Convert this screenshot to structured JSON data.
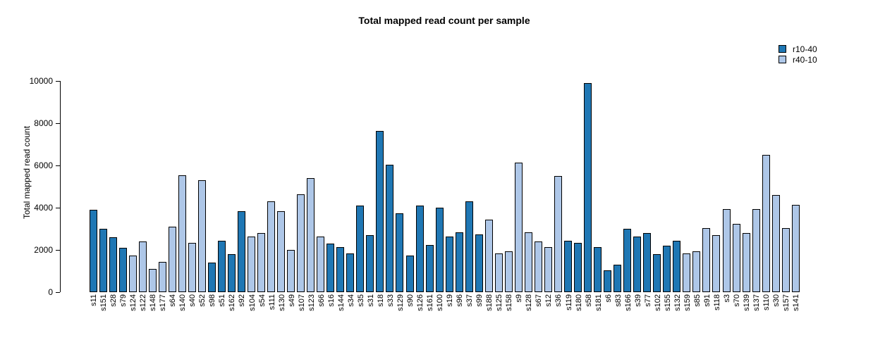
{
  "chart_data": {
    "type": "bar",
    "title": "Total mapped read count per sample",
    "xlabel": "",
    "ylabel": "Total mapped read count",
    "ylim": [
      0,
      10000
    ],
    "yticks": [
      0,
      2000,
      4000,
      6000,
      8000,
      10000
    ],
    "grid": false,
    "legend_position": "top-right",
    "legend": [
      {
        "name": "r10-40",
        "color": "#1f77b4"
      },
      {
        "name": "r40-10",
        "color": "#aec7e8"
      }
    ],
    "samples": [
      {
        "label": "s11",
        "value": 3900,
        "series": "r10-40"
      },
      {
        "label": "s151",
        "value": 3000,
        "series": "r10-40"
      },
      {
        "label": "s28",
        "value": 2600,
        "series": "r10-40"
      },
      {
        "label": "s79",
        "value": 2100,
        "series": "r10-40"
      },
      {
        "label": "s124",
        "value": 1750,
        "series": "r40-10"
      },
      {
        "label": "s122",
        "value": 2400,
        "series": "r40-10"
      },
      {
        "label": "s148",
        "value": 1100,
        "series": "r40-10"
      },
      {
        "label": "s177",
        "value": 1450,
        "series": "r40-10"
      },
      {
        "label": "s64",
        "value": 3100,
        "series": "r40-10"
      },
      {
        "label": "s140",
        "value": 5550,
        "series": "r40-10"
      },
      {
        "label": "s40",
        "value": 2350,
        "series": "r40-10"
      },
      {
        "label": "s52",
        "value": 5300,
        "series": "r40-10"
      },
      {
        "label": "s98",
        "value": 1400,
        "series": "r10-40"
      },
      {
        "label": "s51",
        "value": 2450,
        "series": "r10-40"
      },
      {
        "label": "s162",
        "value": 1800,
        "series": "r10-40"
      },
      {
        "label": "s92",
        "value": 3850,
        "series": "r10-40"
      },
      {
        "label": "s104",
        "value": 2650,
        "series": "r40-10"
      },
      {
        "label": "s54",
        "value": 2800,
        "series": "r40-10"
      },
      {
        "label": "s111",
        "value": 4300,
        "series": "r40-10"
      },
      {
        "label": "s130",
        "value": 3850,
        "series": "r40-10"
      },
      {
        "label": "s49",
        "value": 2000,
        "series": "r40-10"
      },
      {
        "label": "s107",
        "value": 4650,
        "series": "r40-10"
      },
      {
        "label": "s123",
        "value": 5400,
        "series": "r40-10"
      },
      {
        "label": "s66",
        "value": 2650,
        "series": "r40-10"
      },
      {
        "label": "s16",
        "value": 2300,
        "series": "r10-40"
      },
      {
        "label": "s144",
        "value": 2150,
        "series": "r10-40"
      },
      {
        "label": "s34",
        "value": 1850,
        "series": "r10-40"
      },
      {
        "label": "s35",
        "value": 4100,
        "series": "r10-40"
      },
      {
        "label": "s31",
        "value": 2700,
        "series": "r10-40"
      },
      {
        "label": "s18",
        "value": 7650,
        "series": "r10-40"
      },
      {
        "label": "s33",
        "value": 6050,
        "series": "r10-40"
      },
      {
        "label": "s129",
        "value": 3750,
        "series": "r10-40"
      },
      {
        "label": "s90",
        "value": 1750,
        "series": "r10-40"
      },
      {
        "label": "s126",
        "value": 4100,
        "series": "r10-40"
      },
      {
        "label": "s161",
        "value": 2250,
        "series": "r10-40"
      },
      {
        "label": "s100",
        "value": 4000,
        "series": "r10-40"
      },
      {
        "label": "s19",
        "value": 2650,
        "series": "r10-40"
      },
      {
        "label": "s96",
        "value": 2850,
        "series": "r10-40"
      },
      {
        "label": "s37",
        "value": 4300,
        "series": "r10-40"
      },
      {
        "label": "s99",
        "value": 2750,
        "series": "r10-40"
      },
      {
        "label": "s188",
        "value": 3450,
        "series": "r40-10"
      },
      {
        "label": "s125",
        "value": 1850,
        "series": "r40-10"
      },
      {
        "label": "s158",
        "value": 1950,
        "series": "r40-10"
      },
      {
        "label": "s9",
        "value": 6150,
        "series": "r40-10"
      },
      {
        "label": "s128",
        "value": 2850,
        "series": "r40-10"
      },
      {
        "label": "s67",
        "value": 2400,
        "series": "r40-10"
      },
      {
        "label": "s12",
        "value": 2150,
        "series": "r40-10"
      },
      {
        "label": "s36",
        "value": 5500,
        "series": "r40-10"
      },
      {
        "label": "s119",
        "value": 2450,
        "series": "r10-40"
      },
      {
        "label": "s180",
        "value": 2350,
        "series": "r10-40"
      },
      {
        "label": "s58",
        "value": 9900,
        "series": "r10-40"
      },
      {
        "label": "s181",
        "value": 2150,
        "series": "r10-40"
      },
      {
        "label": "s6",
        "value": 1050,
        "series": "r10-40"
      },
      {
        "label": "s83",
        "value": 1300,
        "series": "r10-40"
      },
      {
        "label": "s166",
        "value": 3000,
        "series": "r10-40"
      },
      {
        "label": "s39",
        "value": 2650,
        "series": "r10-40"
      },
      {
        "label": "s77",
        "value": 2800,
        "series": "r10-40"
      },
      {
        "label": "s102",
        "value": 1800,
        "series": "r10-40"
      },
      {
        "label": "s155",
        "value": 2200,
        "series": "r10-40"
      },
      {
        "label": "s132",
        "value": 2450,
        "series": "r10-40"
      },
      {
        "label": "s159",
        "value": 1850,
        "series": "r40-10"
      },
      {
        "label": "s85",
        "value": 1950,
        "series": "r40-10"
      },
      {
        "label": "s91",
        "value": 3050,
        "series": "r40-10"
      },
      {
        "label": "s118",
        "value": 2700,
        "series": "r40-10"
      },
      {
        "label": "s3",
        "value": 3950,
        "series": "r40-10"
      },
      {
        "label": "s70",
        "value": 3250,
        "series": "r40-10"
      },
      {
        "label": "s139",
        "value": 2800,
        "series": "r40-10"
      },
      {
        "label": "s137",
        "value": 3950,
        "series": "r40-10"
      },
      {
        "label": "s110",
        "value": 6500,
        "series": "r40-10"
      },
      {
        "label": "s30",
        "value": 4600,
        "series": "r40-10"
      },
      {
        "label": "s157",
        "value": 3050,
        "series": "r40-10"
      },
      {
        "label": "s141",
        "value": 4150,
        "series": "r40-10"
      }
    ]
  }
}
